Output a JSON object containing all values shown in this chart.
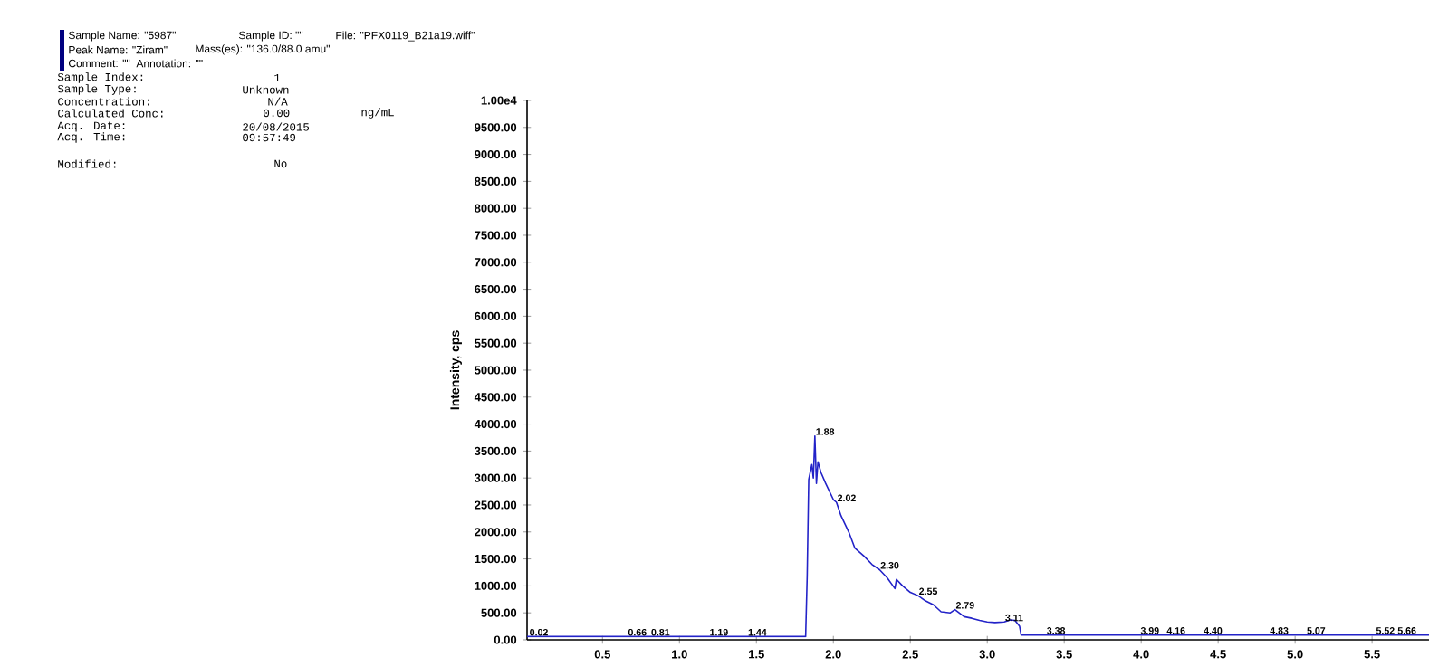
{
  "chart_data": {
    "type": "line",
    "ylabel": "Intensity, cps",
    "xlim": [
      0.01,
      5.87
    ],
    "ylim": [
      0,
      10000
    ],
    "xticks": [
      {
        "value": 0.5,
        "label": "0.5"
      },
      {
        "value": 1.0,
        "label": "1.0"
      },
      {
        "value": 1.5,
        "label": "1.5"
      },
      {
        "value": 2.0,
        "label": "2.0"
      },
      {
        "value": 2.5,
        "label": "2.5"
      },
      {
        "value": 3.0,
        "label": "3.0"
      },
      {
        "value": 3.5,
        "label": "3.5"
      },
      {
        "value": 4.0,
        "label": "4.0"
      },
      {
        "value": 4.5,
        "label": "4.5"
      },
      {
        "value": 5.0,
        "label": "5.0"
      },
      {
        "value": 5.5,
        "label": "5.5"
      }
    ],
    "yticks": [
      {
        "value": 0,
        "label": "0.00"
      },
      {
        "value": 500,
        "label": "500.00"
      },
      {
        "value": 1000,
        "label": "1000.00"
      },
      {
        "value": 1500,
        "label": "1500.00"
      },
      {
        "value": 2000,
        "label": "2000.00"
      },
      {
        "value": 2500,
        "label": "2500.00"
      },
      {
        "value": 3000,
        "label": "3000.00"
      },
      {
        "value": 3500,
        "label": "3500.00"
      },
      {
        "value": 4000,
        "label": "4000.00"
      },
      {
        "value": 4500,
        "label": "4500.00"
      },
      {
        "value": 5000,
        "label": "5000.00"
      },
      {
        "value": 5500,
        "label": "5500.00"
      },
      {
        "value": 6000,
        "label": "6000.00"
      },
      {
        "value": 6500,
        "label": "6500.00"
      },
      {
        "value": 7000,
        "label": "7000.00"
      },
      {
        "value": 7500,
        "label": "7500.00"
      },
      {
        "value": 8000,
        "label": "8000.00"
      },
      {
        "value": 8500,
        "label": "8500.00"
      },
      {
        "value": 9000,
        "label": "9000.00"
      },
      {
        "value": 9500,
        "label": "9500.00"
      },
      {
        "value": 10000,
        "label": "1.00e4"
      }
    ],
    "series": [
      {
        "color": "#2323c8",
        "x": [
          0.01,
          0.5,
          1.0,
          1.5,
          1.82,
          1.83,
          1.84,
          1.86,
          1.87,
          1.88,
          1.89,
          1.9,
          1.92,
          1.95,
          2.0,
          2.02,
          2.05,
          2.1,
          2.14,
          2.2,
          2.25,
          2.3,
          2.35,
          2.4,
          2.41,
          2.45,
          2.5,
          2.55,
          2.6,
          2.65,
          2.7,
          2.76,
          2.79,
          2.85,
          2.9,
          2.95,
          3.0,
          3.05,
          3.11,
          3.15,
          3.18,
          3.21,
          3.22,
          3.5,
          4.0,
          4.5,
          5.0,
          5.5,
          5.87
        ],
        "values": [
          60,
          60,
          60,
          60,
          60,
          1180,
          2970,
          3250,
          3000,
          3780,
          2900,
          3300,
          3100,
          2900,
          2600,
          2550,
          2300,
          2000,
          1700,
          1550,
          1400,
          1300,
          1150,
          950,
          1120,
          1000,
          880,
          820,
          720,
          650,
          520,
          500,
          560,
          430,
          400,
          360,
          330,
          320,
          330,
          370,
          360,
          250,
          90,
          90,
          90,
          90,
          90,
          90,
          90
        ]
      }
    ],
    "annotations": [
      "Sample Name: \"5987\"",
      "Sample ID: \"\"",
      "File: \"PFX0119_B21a19.wiff\"",
      "Peak Name: \"Ziram\"",
      "Mass(es): \"136.0/88.0 amu\"",
      "Comment: \"\"",
      "Annotation: \"\"",
      "Sample Index:",
      "1",
      "Sample Type:",
      "Unknown",
      "Concentration:",
      "N/A",
      "Calculated Conc:",
      "0.00",
      "ng/mL",
      "Acq. Date:",
      "20/08/2015",
      "Acq. Time:",
      "09:57:49",
      "Modified:",
      "No",
      {
        "text": "0.02",
        "x": 0.02,
        "y": 60
      },
      {
        "text": "0.66",
        "x": 0.66,
        "y": 60
      },
      {
        "text": "0.81",
        "x": 0.81,
        "y": 60
      },
      {
        "text": "1.19",
        "x": 1.19,
        "y": 60
      },
      {
        "text": "1.44",
        "x": 1.44,
        "y": 60
      },
      {
        "text": "1.88",
        "x": 1.88,
        "y": 3780
      },
      {
        "text": "2.02",
        "x": 2.02,
        "y": 2550
      },
      {
        "text": "2.30",
        "x": 2.3,
        "y": 1300
      },
      {
        "text": "2.55",
        "x": 2.55,
        "y": 820
      },
      {
        "text": "2.79",
        "x": 2.79,
        "y": 560
      },
      {
        "text": "3.11",
        "x": 3.11,
        "y": 330
      },
      {
        "text": "3.38",
        "x": 3.38,
        "y": 90
      },
      {
        "text": "3.99",
        "x": 3.99,
        "y": 90
      },
      {
        "text": "4.16",
        "x": 4.16,
        "y": 90
      },
      {
        "text": "4.40",
        "x": 4.4,
        "y": 90
      },
      {
        "text": "4.83",
        "x": 4.83,
        "y": 90
      },
      {
        "text": "5.07",
        "x": 5.07,
        "y": 90
      },
      {
        "text": "5.52",
        "x": 5.52,
        "y": 90
      },
      {
        "text": "5.66",
        "x": 5.66,
        "y": 90
      }
    ]
  }
}
